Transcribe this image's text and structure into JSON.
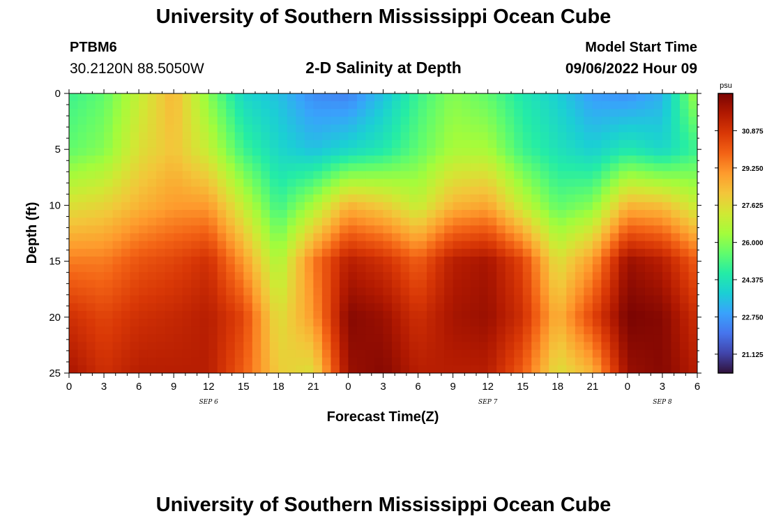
{
  "header": {
    "main_title": "University of Southern Mississippi Ocean Cube",
    "station_id": "PTBM6",
    "station_coords": "30.2120N  88.5050W",
    "chart_title": "2-D Salinity at Depth",
    "model_start_label": "Model Start Time",
    "model_start_value": "09/06/2022 Hour 09"
  },
  "footer": {
    "title": "University of Southern Mississippi Ocean Cube"
  },
  "colorbar": {
    "unit": "psu",
    "ticks": [
      "30.875",
      "29.250",
      "27.625",
      "26.000",
      "24.375",
      "22.750",
      "21.125"
    ],
    "tick_values": [
      30.875,
      29.25,
      27.625,
      26.0,
      24.375,
      22.75,
      21.125
    ],
    "vmin": 20.3,
    "vmax": 32.5,
    "colors": [
      "#30123b",
      "#4145ab",
      "#4675ed",
      "#39a2fc",
      "#1bcfd4",
      "#24eca6",
      "#61fc6c",
      "#a4fc3b",
      "#d1e834",
      "#f3c63a",
      "#fe9b2d",
      "#f36315",
      "#d93806",
      "#b11901",
      "#7a0402"
    ]
  },
  "chart_data": {
    "type": "heatmap",
    "title": "2-D Salinity at Depth",
    "xlabel": "Forecast Time(Z)",
    "ylabel": "Depth (ft)",
    "x_tick_labels": [
      "0",
      "3",
      "6",
      "9",
      "12",
      "15",
      "18",
      "21",
      "0",
      "3",
      "6",
      "9",
      "12",
      "15",
      "18",
      "21",
      "0",
      "3",
      "6"
    ],
    "x_range_hours": [
      0,
      54
    ],
    "day_labels": [
      {
        "label": "SEP 6",
        "hour": 12
      },
      {
        "label": "SEP 7",
        "hour": 36
      },
      {
        "label": "SEP 8",
        "hour": 51
      }
    ],
    "y_tick_labels": [
      "0",
      "5",
      "10",
      "15",
      "20",
      "25"
    ],
    "y_range_ft": [
      0,
      25
    ],
    "value_unit": "psu",
    "columns_hours": [
      0,
      3,
      6,
      9,
      12,
      15,
      18,
      21,
      24,
      27,
      30,
      33,
      36,
      39,
      42,
      45,
      48,
      51,
      54
    ],
    "rows_depth_ft": [
      0,
      5,
      10,
      15,
      20,
      25
    ],
    "values_psu": [
      [
        25.0,
        25.5,
        27.0,
        28.5,
        26.0,
        24.0,
        23.5,
        22.5,
        22.3,
        23.5,
        25.0,
        26.0,
        25.5,
        24.5,
        23.8,
        22.8,
        22.6,
        23.2,
        26.5
      ],
      [
        25.5,
        26.0,
        27.5,
        28.2,
        27.0,
        25.0,
        24.0,
        23.5,
        24.0,
        24.5,
        25.5,
        26.5,
        26.5,
        25.0,
        24.3,
        23.8,
        24.5,
        24.0,
        25.0
      ],
      [
        27.5,
        27.8,
        28.5,
        29.0,
        29.0,
        27.0,
        25.0,
        26.5,
        28.5,
        28.0,
        27.0,
        28.5,
        28.8,
        27.0,
        25.5,
        26.0,
        28.5,
        28.3,
        27.0
      ],
      [
        29.5,
        29.5,
        30.2,
        30.5,
        31.0,
        29.0,
        26.5,
        29.5,
        31.5,
        31.0,
        30.0,
        31.5,
        31.8,
        30.5,
        27.5,
        29.0,
        32.0,
        31.5,
        30.0
      ],
      [
        31.0,
        30.5,
        31.0,
        31.2,
        31.5,
        30.5,
        27.5,
        29.0,
        32.3,
        32.0,
        31.0,
        31.8,
        32.0,
        31.0,
        28.5,
        30.5,
        32.5,
        32.3,
        31.0
      ],
      [
        31.8,
        31.0,
        31.5,
        31.5,
        31.5,
        30.0,
        28.0,
        27.5,
        32.0,
        32.3,
        31.5,
        31.5,
        31.5,
        30.0,
        27.5,
        28.5,
        32.0,
        32.3,
        31.5
      ]
    ]
  }
}
